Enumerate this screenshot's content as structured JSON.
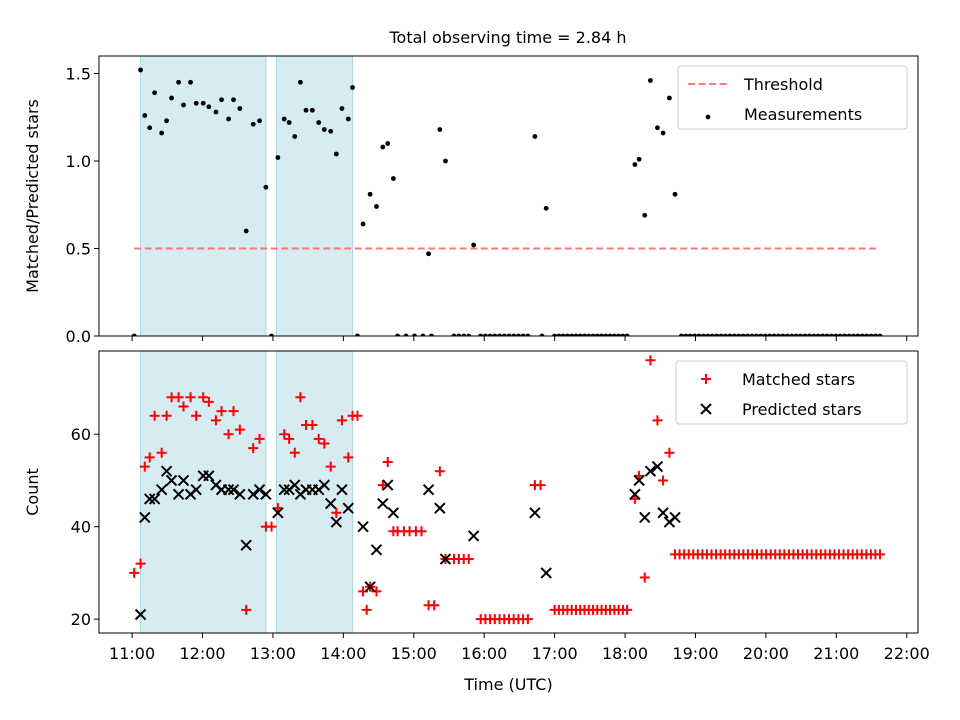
{
  "title": "Total observing time = 2.84 h",
  "chart_data": [
    {
      "type": "scatter",
      "ylabel": "Matched/Predicted stars",
      "xlabel": "",
      "xlim": [
        10.53,
        22.16
      ],
      "ylim": [
        0,
        1.6
      ],
      "yticks": [
        0.0,
        0.5,
        1.0,
        1.5
      ],
      "ytick_labels": [
        "0.0",
        "0.5",
        "1.0",
        "1.5"
      ],
      "shaded_intervals": [
        [
          11.12,
          12.9
        ],
        [
          13.05,
          14.13
        ]
      ],
      "legend_position": "top-right",
      "series": [
        {
          "name": "Threshold",
          "style": "dashed-line",
          "color": "#ff7777",
          "x": [
            11.03,
            21.6
          ],
          "y": [
            0.5,
            0.5
          ]
        },
        {
          "name": "Measurements",
          "style": "dot",
          "color": "#000000",
          "x": [
            11.03,
            11.12,
            11.18,
            11.25,
            11.32,
            11.42,
            11.49,
            11.56,
            11.66,
            11.73,
            11.83,
            11.91,
            12.01,
            12.09,
            12.19,
            12.27,
            12.37,
            12.44,
            12.53,
            12.62,
            12.72,
            12.81,
            12.9,
            12.98,
            13.07,
            13.16,
            13.23,
            13.31,
            13.39,
            13.47,
            13.56,
            13.65,
            13.73,
            13.82,
            13.9,
            13.98,
            14.07,
            14.13,
            14.2,
            14.28,
            14.38,
            14.47,
            14.56,
            14.63,
            14.71,
            15.21,
            15.37,
            15.45,
            15.85,
            16.72,
            16.88,
            18.14,
            18.2,
            18.28,
            18.36,
            18.46,
            18.54,
            18.63,
            18.71
          ],
          "y": [
            0.0,
            1.52,
            1.26,
            1.19,
            1.39,
            1.16,
            1.23,
            1.36,
            1.45,
            1.32,
            1.45,
            1.33,
            1.33,
            1.31,
            1.28,
            1.35,
            1.24,
            1.35,
            1.3,
            0.6,
            1.21,
            1.23,
            0.85,
            0.0,
            1.02,
            1.24,
            1.22,
            1.14,
            1.45,
            1.29,
            1.29,
            1.22,
            1.18,
            1.17,
            1.04,
            1.3,
            1.24,
            1.42,
            0.0,
            0.64,
            0.81,
            0.74,
            1.08,
            1.1,
            0.9,
            0.47,
            1.18,
            1.0,
            0.52,
            1.14,
            0.73,
            0.98,
            1.01,
            0.69,
            1.46,
            1.19,
            1.16,
            1.36,
            0.81
          ]
        }
      ],
      "zero_measurements": {
        "x_ranges": [
          [
            14.77,
            15.25,
            5
          ],
          [
            15.57,
            15.78,
            4
          ],
          [
            15.95,
            16.62,
            11
          ],
          [
            16.82,
            16.82,
            1
          ],
          [
            17.0,
            18.03,
            18
          ],
          [
            18.8,
            21.62,
            46
          ]
        ],
        "y": 0.0
      }
    },
    {
      "type": "scatter",
      "ylabel": "Count",
      "xlabel": "Time (UTC)",
      "xlim": [
        10.53,
        22.16
      ],
      "ylim": [
        17,
        78
      ],
      "yticks": [
        20,
        40,
        60
      ],
      "ytick_labels": [
        "20",
        "40",
        "60"
      ],
      "xticks": [
        11,
        12,
        13,
        14,
        15,
        16,
        17,
        18,
        19,
        20,
        21,
        22
      ],
      "xtick_labels": [
        "11:00",
        "12:00",
        "13:00",
        "14:00",
        "15:00",
        "16:00",
        "17:00",
        "18:00",
        "19:00",
        "20:00",
        "21:00",
        "22:00"
      ],
      "shaded_intervals": [
        [
          11.12,
          12.9
        ],
        [
          13.05,
          14.13
        ]
      ],
      "legend_position": "top-right",
      "series": [
        {
          "name": "Matched stars",
          "style": "plus",
          "color": "#ff0000",
          "x": [
            11.03,
            11.12,
            11.18,
            11.25,
            11.32,
            11.42,
            11.49,
            11.56,
            11.66,
            11.73,
            11.83,
            11.91,
            12.01,
            12.09,
            12.19,
            12.27,
            12.37,
            12.44,
            12.53,
            12.62,
            12.72,
            12.81,
            12.9,
            12.98,
            13.07,
            13.16,
            13.23,
            13.31,
            13.39,
            13.47,
            13.56,
            13.65,
            13.73,
            13.82,
            13.9,
            13.98,
            14.07,
            14.13,
            14.2,
            14.28,
            14.33,
            14.38,
            14.47,
            14.56,
            14.63,
            14.71,
            14.77,
            14.86,
            14.94,
            15.03,
            15.11,
            15.21,
            15.29,
            15.37,
            15.45,
            15.57,
            15.64,
            15.71,
            15.78,
            16.72,
            16.8,
            18.14,
            18.2,
            18.28,
            18.36,
            18.46,
            18.54,
            18.63
          ],
          "y": [
            30,
            32,
            53,
            55,
            64,
            56,
            64,
            68,
            68,
            66,
            68,
            64,
            68,
            67,
            63,
            65,
            60,
            65,
            61,
            22,
            57,
            59,
            40,
            40,
            44,
            60,
            59,
            56,
            68,
            62,
            62,
            59,
            58,
            53,
            43,
            63,
            55,
            64,
            64,
            26,
            22,
            27,
            26,
            49,
            54,
            39,
            39,
            39,
            39,
            39,
            39,
            23,
            23,
            52,
            33,
            33,
            33,
            33,
            33,
            49,
            49,
            46,
            51,
            29,
            76,
            63,
            50,
            56
          ]
        },
        {
          "name": "Predicted stars",
          "style": "x",
          "color": "#000000",
          "x": [
            11.12,
            11.18,
            11.25,
            11.32,
            11.42,
            11.49,
            11.56,
            11.66,
            11.73,
            11.83,
            11.91,
            12.01,
            12.09,
            12.19,
            12.27,
            12.37,
            12.44,
            12.53,
            12.62,
            12.72,
            12.81,
            12.9,
            13.07,
            13.16,
            13.23,
            13.31,
            13.39,
            13.47,
            13.56,
            13.65,
            13.73,
            13.82,
            13.9,
            13.98,
            14.07,
            14.28,
            14.38,
            14.47,
            14.56,
            14.63,
            14.71,
            15.21,
            15.37,
            15.45,
            15.85,
            16.72,
            16.88,
            18.14,
            18.2,
            18.28,
            18.36,
            18.46,
            18.54,
            18.63,
            18.71
          ],
          "y": [
            21,
            42,
            46,
            46,
            48,
            52,
            50,
            47,
            50,
            47,
            48,
            51,
            51,
            49,
            48,
            48,
            48,
            47,
            36,
            47,
            48,
            47,
            43,
            48,
            48,
            49,
            47,
            48,
            48,
            48,
            49,
            45,
            41,
            48,
            44,
            40,
            27,
            35,
            45,
            49,
            43,
            48,
            44,
            33,
            38,
            43,
            30,
            47,
            50,
            42,
            52,
            53,
            43,
            41,
            42
          ]
        }
      ],
      "line_of_matched": {
        "x_ranges": [
          [
            15.95,
            16.62,
            11,
            20
          ],
          [
            17.0,
            18.03,
            18,
            22
          ],
          [
            18.71,
            21.62,
            46,
            34
          ]
        ]
      }
    }
  ]
}
